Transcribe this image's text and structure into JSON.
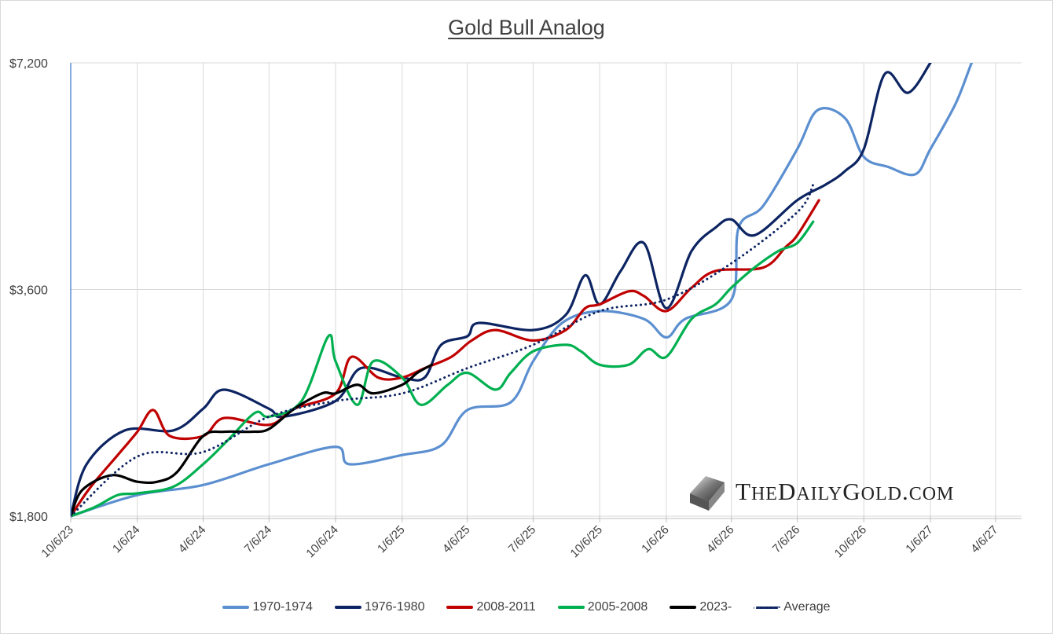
{
  "chart_data": {
    "type": "line",
    "title": "Gold Bull Analog",
    "xlabel": "",
    "ylabel": "",
    "y_scale": "log",
    "ylim": [
      1800,
      7200
    ],
    "xlim": [
      "2023-10-06",
      "2027-05-12"
    ],
    "grid": {
      "vertical": true,
      "horizontal": true
    },
    "legend_position": "bottom",
    "y_ticks": [
      {
        "value": 1800,
        "label": "$1,800"
      },
      {
        "value": 3600,
        "label": "$3,600"
      },
      {
        "value": 7200,
        "label": "$7,200"
      }
    ],
    "x_ticks": [
      {
        "date": "2023-10-06",
        "label": "10/6/23"
      },
      {
        "date": "2024-01-06",
        "label": "1/6/24"
      },
      {
        "date": "2024-04-06",
        "label": "4/6/24"
      },
      {
        "date": "2024-07-06",
        "label": "7/6/24"
      },
      {
        "date": "2024-10-06",
        "label": "10/6/24"
      },
      {
        "date": "2025-01-06",
        "label": "1/6/25"
      },
      {
        "date": "2025-04-06",
        "label": "4/6/25"
      },
      {
        "date": "2025-07-06",
        "label": "7/6/25"
      },
      {
        "date": "2025-10-06",
        "label": "10/6/25"
      },
      {
        "date": "2026-01-06",
        "label": "1/6/26"
      },
      {
        "date": "2026-04-06",
        "label": "4/6/26"
      },
      {
        "date": "2026-07-06",
        "label": "7/6/26"
      },
      {
        "date": "2026-10-06",
        "label": "10/6/26"
      },
      {
        "date": "2027-01-06",
        "label": "1/6/27"
      },
      {
        "date": "2027-04-06",
        "label": "4/6/27"
      }
    ],
    "series": [
      {
        "name": "1970-1974",
        "color": "#5b8fd0",
        "style": "solid",
        "points": [
          [
            "2023-10-06",
            1800
          ],
          [
            "2024-01-06",
            1920
          ],
          [
            "2024-04-06",
            1980
          ],
          [
            "2024-07-06",
            2110
          ],
          [
            "2024-10-06",
            2225
          ],
          [
            "2024-10-25",
            2110
          ],
          [
            "2025-01-06",
            2170
          ],
          [
            "2025-03-01",
            2235
          ],
          [
            "2025-04-06",
            2490
          ],
          [
            "2025-06-05",
            2550
          ],
          [
            "2025-07-06",
            2890
          ],
          [
            "2025-08-15",
            3250
          ],
          [
            "2025-10-06",
            3370
          ],
          [
            "2025-12-06",
            3290
          ],
          [
            "2026-01-06",
            3110
          ],
          [
            "2026-02-01",
            3290
          ],
          [
            "2026-04-06",
            3490
          ],
          [
            "2026-04-16",
            4350
          ],
          [
            "2026-05-20",
            4650
          ],
          [
            "2026-07-06",
            5530
          ],
          [
            "2026-08-03",
            6230
          ],
          [
            "2026-09-10",
            6080
          ],
          [
            "2026-10-06",
            5400
          ],
          [
            "2026-11-08",
            5240
          ],
          [
            "2026-12-16",
            5120
          ],
          [
            "2027-01-06",
            5530
          ],
          [
            "2027-02-10",
            6360
          ],
          [
            "2027-03-04",
            7200
          ],
          [
            "2027-03-20",
            7800
          ]
        ]
      },
      {
        "name": "1976-1980",
        "color": "#0d2462",
        "style": "solid",
        "points": [
          [
            "2023-10-06",
            1800
          ],
          [
            "2023-10-28",
            2110
          ],
          [
            "2023-12-20",
            2340
          ],
          [
            "2024-02-25",
            2340
          ],
          [
            "2024-04-06",
            2500
          ],
          [
            "2024-05-05",
            2650
          ],
          [
            "2024-07-06",
            2500
          ],
          [
            "2024-07-25",
            2440
          ],
          [
            "2024-10-06",
            2560
          ],
          [
            "2024-11-10",
            2830
          ],
          [
            "2025-01-06",
            2750
          ],
          [
            "2025-02-06",
            2750
          ],
          [
            "2025-03-01",
            3040
          ],
          [
            "2025-04-06",
            3120
          ],
          [
            "2025-04-22",
            3250
          ],
          [
            "2025-07-06",
            3180
          ],
          [
            "2025-08-20",
            3330
          ],
          [
            "2025-09-16",
            3760
          ],
          [
            "2025-10-06",
            3440
          ],
          [
            "2025-11-04",
            3810
          ],
          [
            "2025-12-06",
            4150
          ],
          [
            "2026-01-06",
            3400
          ],
          [
            "2026-02-10",
            4050
          ],
          [
            "2026-03-15",
            4350
          ],
          [
            "2026-04-06",
            4460
          ],
          [
            "2026-05-08",
            4250
          ],
          [
            "2026-07-06",
            4730
          ],
          [
            "2026-08-14",
            4960
          ],
          [
            "2026-09-10",
            5170
          ],
          [
            "2026-10-06",
            5530
          ],
          [
            "2026-11-04",
            6960
          ],
          [
            "2026-12-06",
            6570
          ],
          [
            "2027-01-06",
            7200
          ]
        ]
      },
      {
        "name": "2008-2011",
        "color": "#c00000",
        "style": "solid",
        "points": [
          [
            "2023-10-06",
            1800
          ],
          [
            "2023-11-02",
            1965
          ],
          [
            "2023-12-10",
            2170
          ],
          [
            "2024-01-06",
            2330
          ],
          [
            "2024-01-28",
            2490
          ],
          [
            "2024-02-20",
            2300
          ],
          [
            "2024-04-06",
            2300
          ],
          [
            "2024-05-05",
            2430
          ],
          [
            "2024-07-06",
            2380
          ],
          [
            "2024-08-10",
            2500
          ],
          [
            "2024-10-06",
            2620
          ],
          [
            "2024-10-28",
            2930
          ],
          [
            "2024-12-04",
            2750
          ],
          [
            "2025-01-06",
            2750
          ],
          [
            "2025-02-06",
            2830
          ],
          [
            "2025-03-15",
            2930
          ],
          [
            "2025-04-12",
            3080
          ],
          [
            "2025-05-15",
            3180
          ],
          [
            "2025-07-06",
            3080
          ],
          [
            "2025-08-20",
            3180
          ],
          [
            "2025-09-16",
            3400
          ],
          [
            "2025-10-06",
            3440
          ],
          [
            "2025-11-15",
            3580
          ],
          [
            "2025-12-06",
            3530
          ],
          [
            "2026-01-06",
            3370
          ],
          [
            "2026-02-10",
            3620
          ],
          [
            "2026-03-15",
            3810
          ],
          [
            "2026-05-20",
            3850
          ],
          [
            "2026-06-20",
            4100
          ],
          [
            "2026-07-06",
            4250
          ],
          [
            "2026-08-05",
            4730
          ]
        ]
      },
      {
        "name": "2005-2008",
        "color": "#00b050",
        "style": "solid",
        "points": [
          [
            "2023-10-06",
            1800
          ],
          [
            "2023-11-08",
            1850
          ],
          [
            "2023-12-10",
            1920
          ],
          [
            "2024-01-06",
            1930
          ],
          [
            "2024-02-25",
            1970
          ],
          [
            "2024-04-06",
            2110
          ],
          [
            "2024-05-10",
            2270
          ],
          [
            "2024-06-17",
            2470
          ],
          [
            "2024-07-06",
            2440
          ],
          [
            "2024-08-20",
            2560
          ],
          [
            "2024-09-26",
            3120
          ],
          [
            "2024-10-06",
            2890
          ],
          [
            "2024-11-05",
            2530
          ],
          [
            "2024-11-27",
            2890
          ],
          [
            "2025-01-06",
            2750
          ],
          [
            "2025-02-01",
            2530
          ],
          [
            "2025-03-10",
            2690
          ],
          [
            "2025-04-06",
            2790
          ],
          [
            "2025-05-15",
            2650
          ],
          [
            "2025-06-05",
            2790
          ],
          [
            "2025-07-06",
            2980
          ],
          [
            "2025-08-20",
            3040
          ],
          [
            "2025-09-10",
            2980
          ],
          [
            "2025-10-06",
            2860
          ],
          [
            "2025-11-15",
            2860
          ],
          [
            "2025-12-12",
            3000
          ],
          [
            "2026-01-06",
            2930
          ],
          [
            "2026-02-10",
            3290
          ],
          [
            "2026-03-15",
            3440
          ],
          [
            "2026-04-06",
            3620
          ],
          [
            "2026-05-08",
            3850
          ],
          [
            "2026-06-10",
            4050
          ],
          [
            "2026-07-06",
            4150
          ],
          [
            "2026-07-28",
            4430
          ]
        ]
      },
      {
        "name": "2023-",
        "color": "#000000",
        "style": "solid",
        "points": [
          [
            "2023-10-06",
            1800
          ],
          [
            "2023-10-22",
            1950
          ],
          [
            "2023-12-01",
            2040
          ],
          [
            "2024-01-06",
            2000
          ],
          [
            "2024-02-03",
            2000
          ],
          [
            "2024-03-01",
            2060
          ],
          [
            "2024-04-06",
            2300
          ],
          [
            "2024-05-05",
            2330
          ],
          [
            "2024-06-12",
            2330
          ],
          [
            "2024-07-06",
            2350
          ],
          [
            "2024-08-10",
            2500
          ],
          [
            "2024-09-17",
            2620
          ],
          [
            "2024-10-06",
            2620
          ],
          [
            "2024-11-05",
            2690
          ],
          [
            "2024-11-27",
            2620
          ],
          [
            "2025-01-06",
            2690
          ],
          [
            "2025-01-27",
            2790
          ],
          [
            "2025-02-16",
            2860
          ]
        ]
      },
      {
        "name": "Average",
        "color": "#0d2462",
        "style": "dotted",
        "points": [
          [
            "2023-10-06",
            1800
          ],
          [
            "2024-01-06",
            2160
          ],
          [
            "2024-04-06",
            2190
          ],
          [
            "2024-07-06",
            2440
          ],
          [
            "2024-10-06",
            2560
          ],
          [
            "2025-01-06",
            2620
          ],
          [
            "2025-04-06",
            2830
          ],
          [
            "2025-07-06",
            3040
          ],
          [
            "2025-10-06",
            3370
          ],
          [
            "2026-01-06",
            3490
          ],
          [
            "2026-04-06",
            3900
          ],
          [
            "2026-07-06",
            4560
          ],
          [
            "2026-07-28",
            4960
          ]
        ]
      }
    ]
  },
  "watermark": {
    "text": "TheDailyGold.com"
  }
}
